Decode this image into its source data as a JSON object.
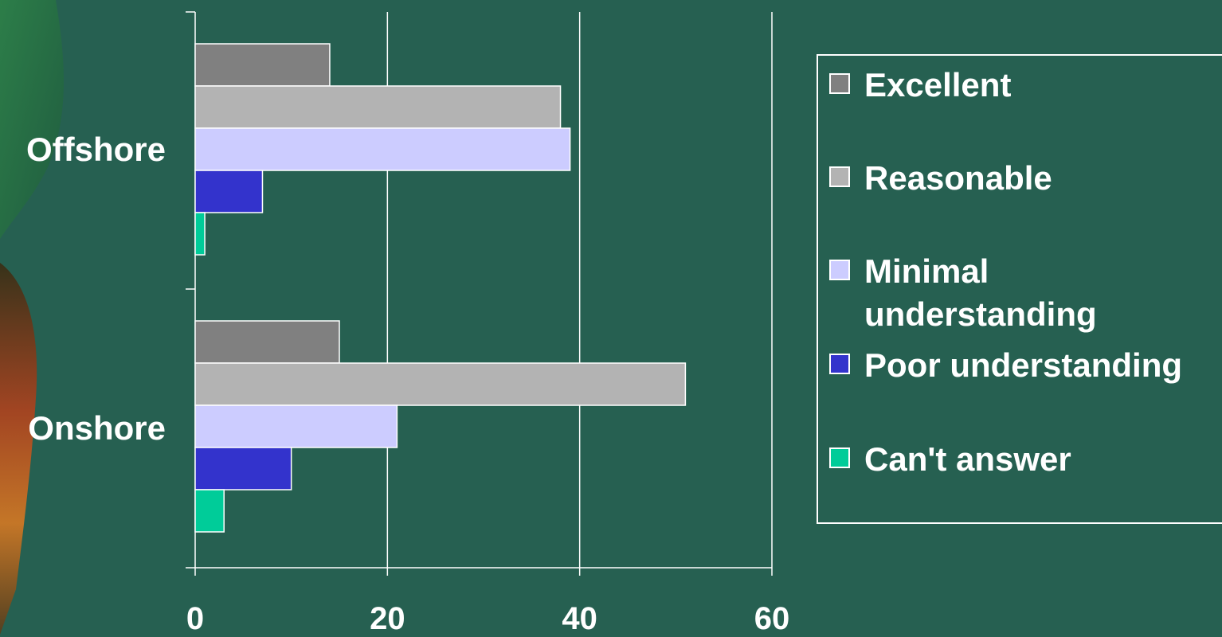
{
  "chart_data": {
    "type": "bar",
    "orientation": "horizontal",
    "categories": [
      "Offshore",
      "Onshore"
    ],
    "series": [
      {
        "name": "Excellent",
        "color": "#808080",
        "values": [
          14,
          15
        ]
      },
      {
        "name": "Reasonable",
        "color": "#b3b3b3",
        "values": [
          38,
          51
        ]
      },
      {
        "name": "Minimal\nunderstanding",
        "color": "#ccccff",
        "values": [
          39,
          21
        ]
      },
      {
        "name": "Poor understanding",
        "color": "#3333cc",
        "values": [
          7,
          10
        ]
      },
      {
        "name": "Can't answer",
        "color": "#00cc99",
        "values": [
          1,
          3
        ]
      }
    ],
    "xlim": [
      0,
      60
    ],
    "xticks": [
      "0",
      "20",
      "40",
      "60"
    ],
    "grid": true,
    "legend_position": "right",
    "title": "",
    "xlabel": "",
    "ylabel": ""
  }
}
